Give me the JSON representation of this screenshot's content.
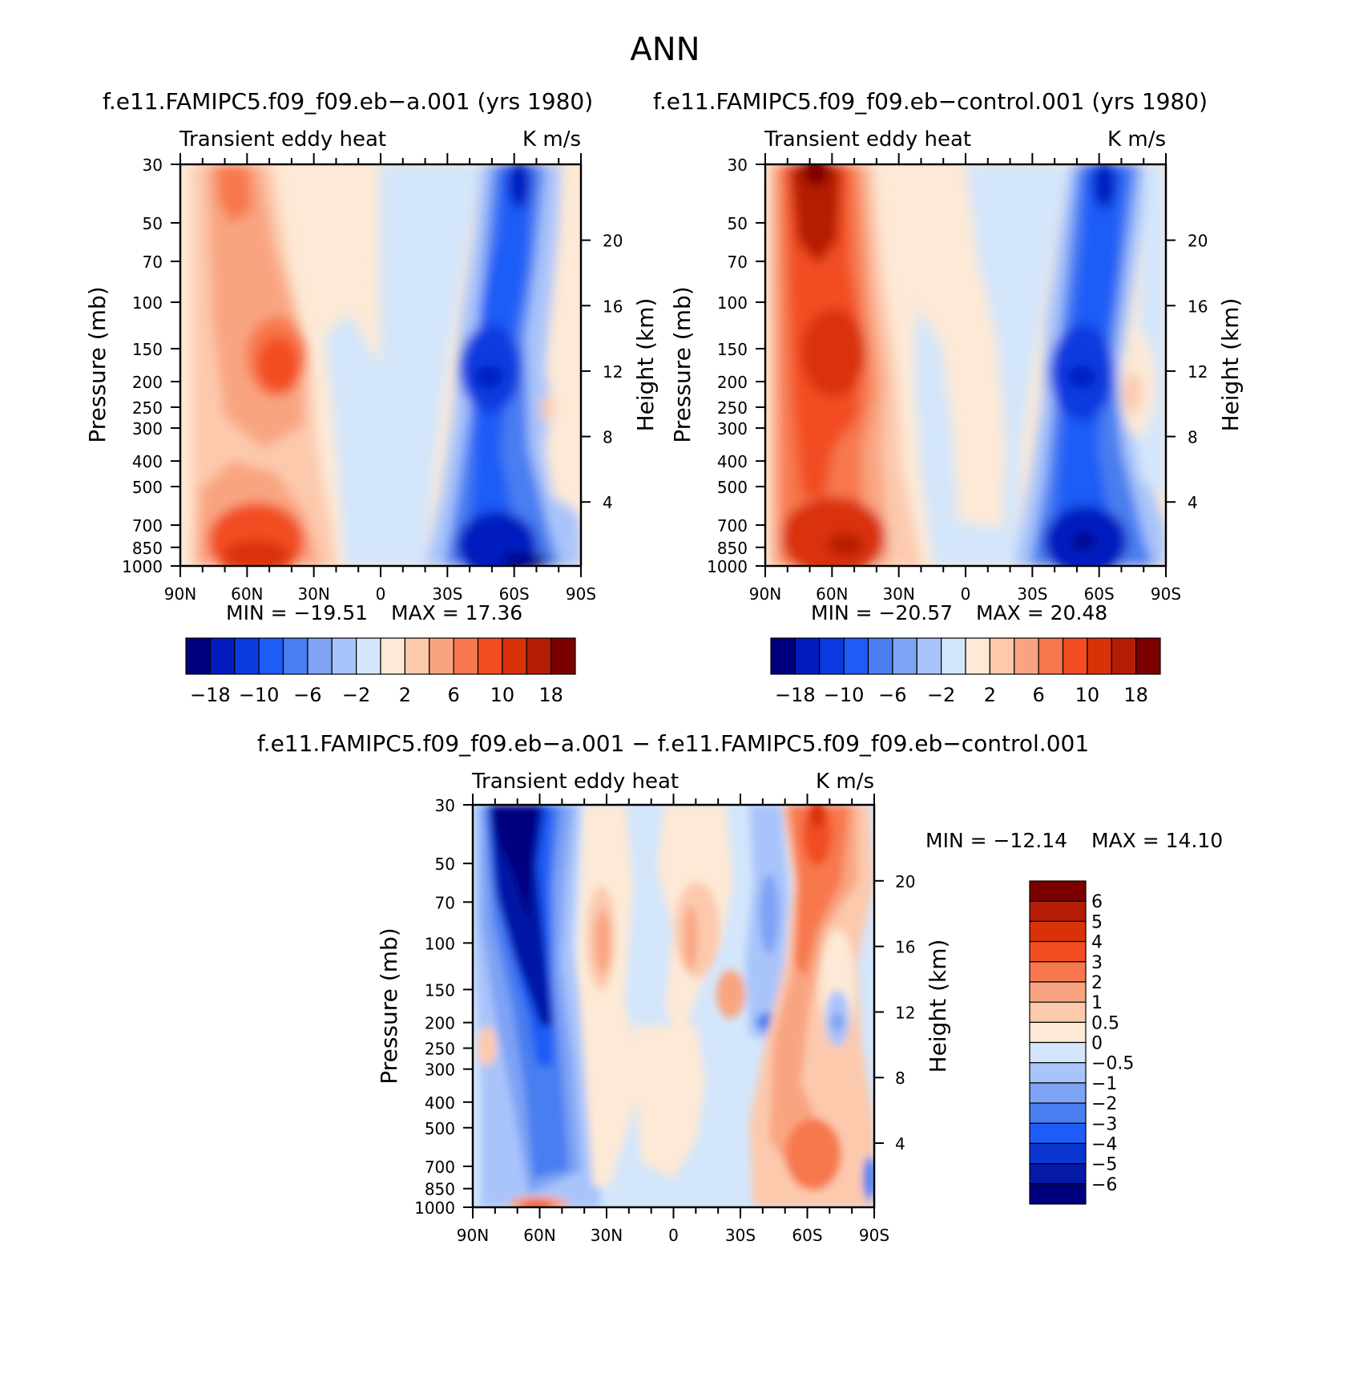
{
  "figure_title": "ANN",
  "colors": {
    "panel_scale": [
      "#00007f",
      "#001cbf",
      "#0a3ae0",
      "#1f5cf7",
      "#4a7ef0",
      "#7ea2f4",
      "#a9c4fb",
      "#d4e6fb",
      "#fde9d6",
      "#fcc9ad",
      "#f9a481",
      "#f7784e",
      "#f24e22",
      "#d93208",
      "#b51c05",
      "#7c0000"
    ],
    "diff_scale": [
      "#00007f",
      "#0519a6",
      "#0a35cf",
      "#1f5cf7",
      "#4a7ef0",
      "#7ea2f4",
      "#a9c4fb",
      "#d4e6fb",
      "#fde9d6",
      "#fcc9ad",
      "#f9a481",
      "#f7784e",
      "#f24e22",
      "#d93208",
      "#b51c05",
      "#7c0000"
    ]
  },
  "panels": [
    {
      "case_title": "f.e11.FAMIPC5.f09_f09.eb−a.001 (yrs 1980)",
      "variable": "Transient eddy heat",
      "units": "K m/s",
      "min_label": "MIN = −19.51",
      "max_label": "MAX = 17.36"
    },
    {
      "case_title": "f.e11.FAMIPC5.f09_f09.eb−control.001 (yrs 1980)",
      "variable": "Transient eddy heat",
      "units": "K m/s",
      "min_label": "MIN = −20.57",
      "max_label": "MAX = 20.48"
    },
    {
      "case_title": "f.e11.FAMIPC5.f09_f09.eb−a.001 − f.e11.FAMIPC5.f09_f09.eb−control.001",
      "variable": "Transient eddy heat",
      "units": "K m/s",
      "min_label": "MIN = −12.14",
      "max_label": "MAX = 14.10"
    }
  ],
  "chart_data": [
    {
      "type": "heatmap",
      "title": "f.e11.FAMIPC5.f09_f09.eb-a.001 (yrs 1980)",
      "field": "Transient eddy heat",
      "units": "K m/s",
      "xlabel": "",
      "ylabel": "Pressure (mb)",
      "y2label": "Height (km)",
      "x_ticks": [
        "90N",
        "60N",
        "30N",
        "0",
        "30S",
        "60S",
        "90S"
      ],
      "y_ticks": [
        30,
        50,
        70,
        100,
        150,
        200,
        250,
        300,
        400,
        500,
        700,
        850,
        1000
      ],
      "y2_ticks": [
        20,
        16,
        12,
        8,
        4
      ],
      "ylim": [
        1000,
        30
      ],
      "min": -19.51,
      "max": 17.36,
      "colorbar_labels": [
        "−18",
        "−10",
        "−6",
        "−2",
        "2",
        "6",
        "10",
        "18"
      ],
      "features": [
        {
          "lat": 55,
          "p": 200,
          "value": 13
        },
        {
          "lat": 60,
          "p": 880,
          "value": 14
        },
        {
          "lat": 65,
          "p": 30,
          "value": 8
        },
        {
          "lat": -50,
          "p": 200,
          "value": -18
        },
        {
          "lat": -50,
          "p": 850,
          "value": -19
        },
        {
          "lat": -55,
          "p": 30,
          "value": -14
        }
      ]
    },
    {
      "type": "heatmap",
      "title": "f.e11.FAMIPC5.f09_f09.eb-control.001 (yrs 1980)",
      "field": "Transient eddy heat",
      "units": "K m/s",
      "xlabel": "",
      "ylabel": "Pressure (mb)",
      "y2label": "Height (km)",
      "x_ticks": [
        "90N",
        "60N",
        "30N",
        "0",
        "30S",
        "60S",
        "90S"
      ],
      "y_ticks": [
        30,
        50,
        70,
        100,
        150,
        200,
        250,
        300,
        400,
        500,
        700,
        850,
        1000
      ],
      "y2_ticks": [
        20,
        16,
        12,
        8,
        4
      ],
      "ylim": [
        1000,
        30
      ],
      "min": -20.57,
      "max": 20.48,
      "colorbar_labels": [
        "−18",
        "−10",
        "−6",
        "−2",
        "2",
        "6",
        "10",
        "18"
      ],
      "features": [
        {
          "lat": 70,
          "p": 30,
          "value": 20
        },
        {
          "lat": 55,
          "p": 170,
          "value": 14
        },
        {
          "lat": 55,
          "p": 850,
          "value": 18
        },
        {
          "lat": -55,
          "p": 200,
          "value": -19
        },
        {
          "lat": -55,
          "p": 850,
          "value": -20
        },
        {
          "lat": -58,
          "p": 30,
          "value": -15
        }
      ]
    },
    {
      "type": "heatmap",
      "title": "f.e11.FAMIPC5.f09_f09.eb-a.001 - f.e11.FAMIPC5.f09_f09.eb-control.001",
      "field": "Transient eddy heat",
      "units": "K m/s",
      "xlabel": "",
      "ylabel": "Pressure (mb)",
      "y2label": "Height (km)",
      "x_ticks": [
        "90N",
        "60N",
        "30N",
        "0",
        "30S",
        "60S",
        "90S"
      ],
      "y_ticks": [
        30,
        50,
        70,
        100,
        150,
        200,
        250,
        300,
        400,
        500,
        700,
        850,
        1000
      ],
      "y2_ticks": [
        20,
        16,
        12,
        8,
        4
      ],
      "ylim": [
        1000,
        30
      ],
      "min": -12.14,
      "max": 14.1,
      "colorbar_labels": [
        "6",
        "5",
        "4",
        "3",
        "2",
        "1",
        "0.5",
        "0",
        "−0.5",
        "−1",
        "−2",
        "−3",
        "−4",
        "−5",
        "−6"
      ],
      "features": [
        {
          "lat": 70,
          "p": 40,
          "value": -7
        },
        {
          "lat": 58,
          "p": 200,
          "value": -5
        },
        {
          "lat": 28,
          "p": 100,
          "value": 2
        },
        {
          "lat": -18,
          "p": 150,
          "value": 2
        },
        {
          "lat": -58,
          "p": 30,
          "value": 6
        },
        {
          "lat": -60,
          "p": 600,
          "value": 3
        }
      ]
    }
  ]
}
